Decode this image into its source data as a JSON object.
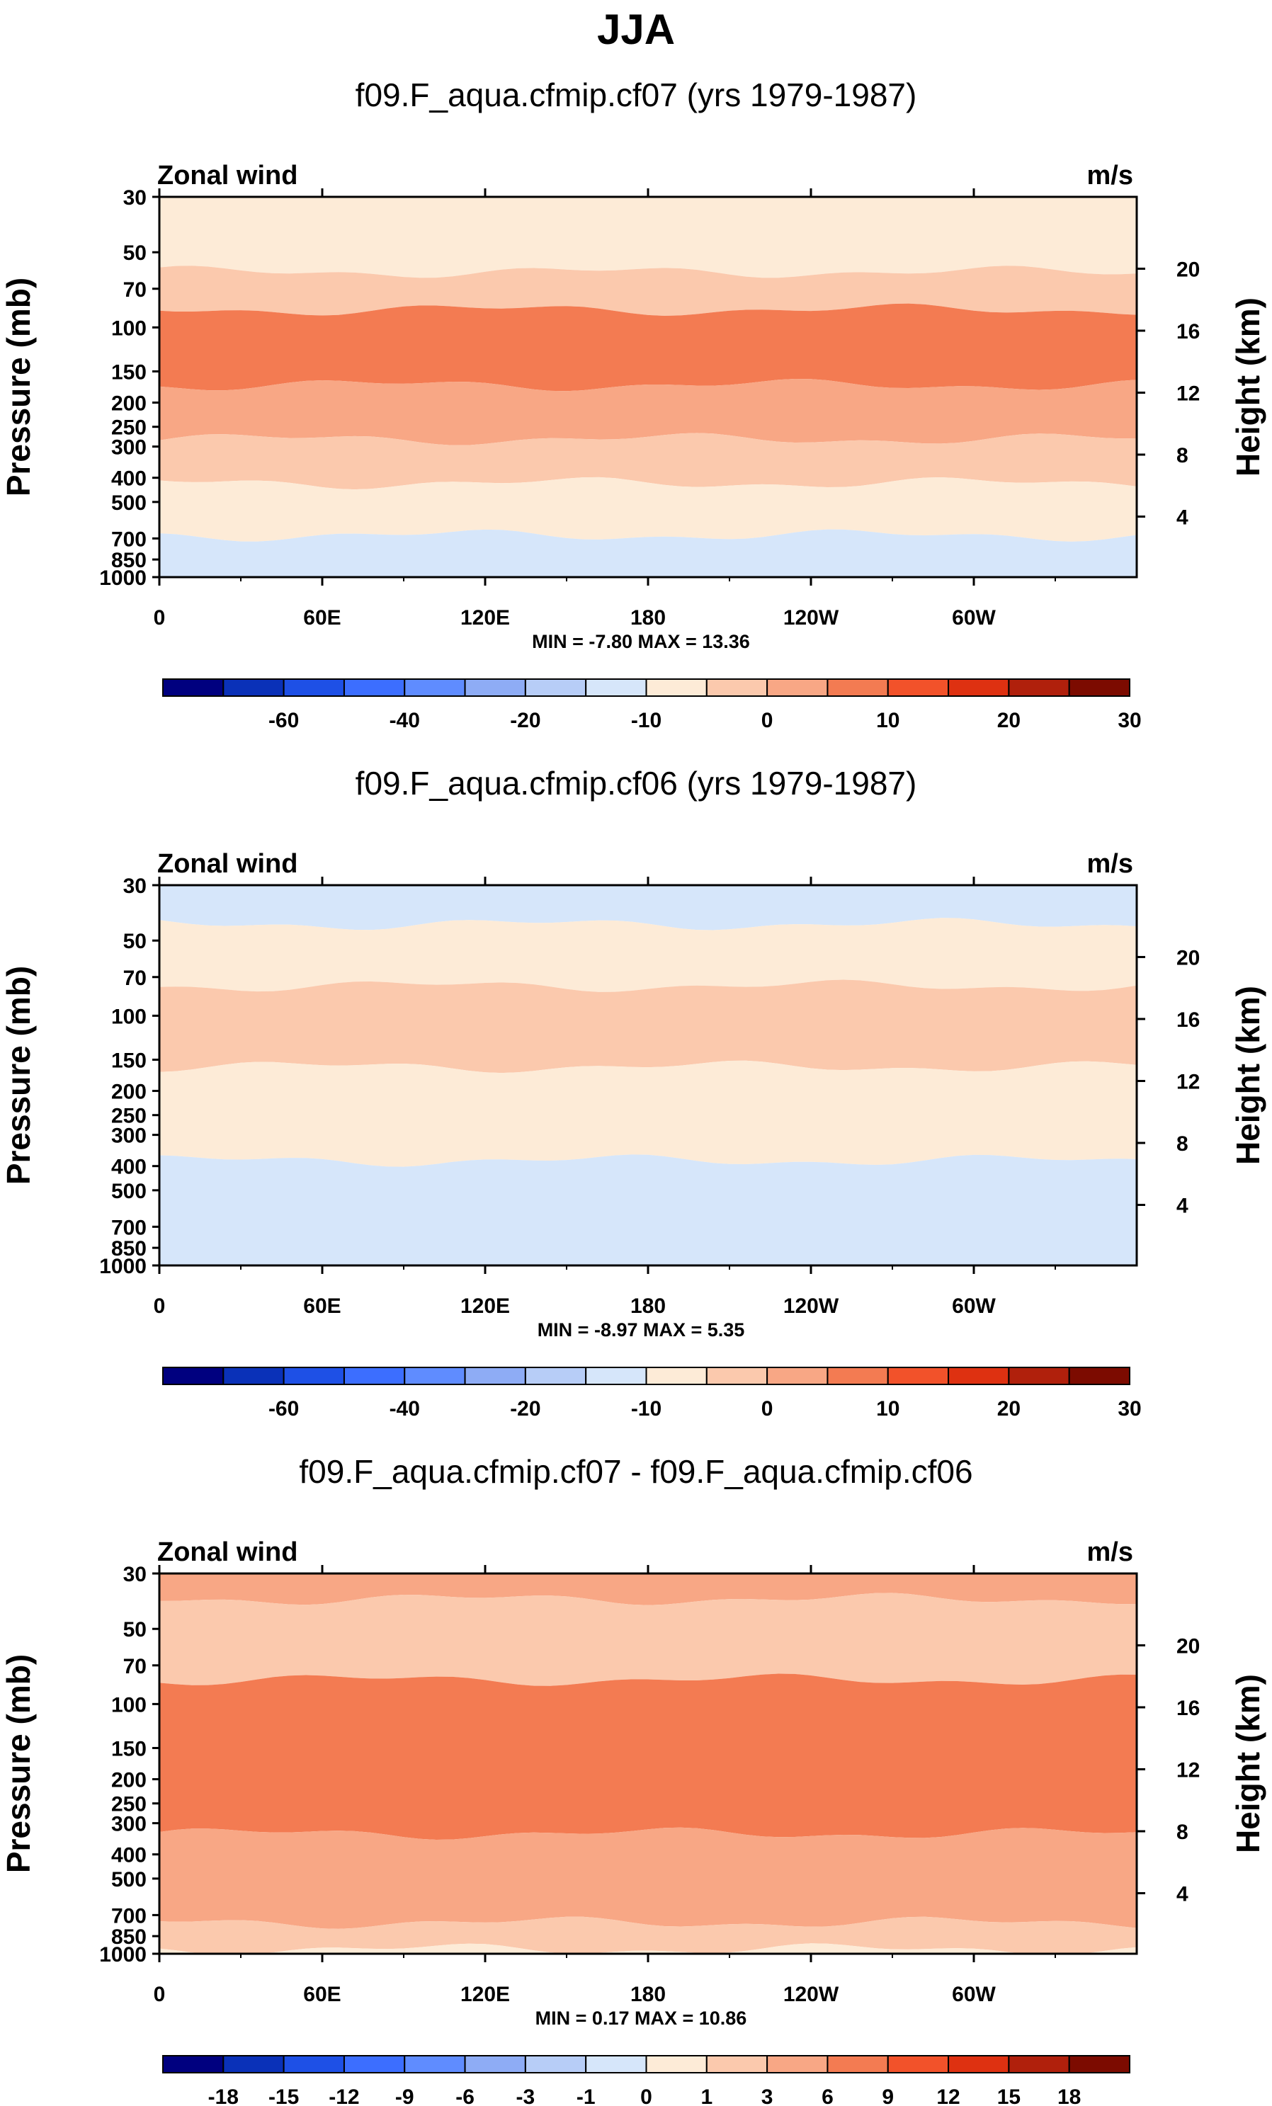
{
  "figure": {
    "title": "JJA"
  },
  "chart_data": [
    {
      "type": "contour",
      "title": "f09.F_aqua.cfmip.cf07 (yrs 1979-1987)",
      "left_label": "Zonal wind",
      "right_label": "m/s",
      "xlabel": "",
      "ylabel": "Pressure (mb)",
      "y2label": "Height (km)",
      "x_ticks": [
        "0",
        "60E",
        "120E",
        "180",
        "120W",
        "60W"
      ],
      "y_ticks": [
        30,
        50,
        70,
        100,
        150,
        200,
        250,
        300,
        400,
        500,
        700,
        850,
        1000
      ],
      "y_scale": "log",
      "ylim": [
        1000,
        30
      ],
      "y2_ticks": [
        4,
        8,
        12,
        16,
        20
      ],
      "stats": "MIN =  -7.80  MAX =  13.36",
      "colorbar": {
        "labels": [
          "-60",
          "-40",
          "-20",
          "-10",
          "0",
          "10",
          "20",
          "30"
        ],
        "colors": [
          "#00007f",
          "#0a31b8",
          "#1e50e6",
          "#3c6eff",
          "#5f8cff",
          "#8eacf5",
          "#b7cdf7",
          "#d6e6fa",
          "#fdebd7",
          "#fbc9ad",
          "#f8a785",
          "#f37b52",
          "#f2522a",
          "#de3111",
          "#b0200c",
          "#7c0b00"
        ]
      },
      "bands": [
        {
          "color": "#fdebd7",
          "from": 30,
          "to": 60
        },
        {
          "color": "#fbc9ad",
          "from": 60,
          "to": 85
        },
        {
          "color": "#f37b52",
          "from": 85,
          "to": 170
        },
        {
          "color": "#f8a785",
          "from": 170,
          "to": 280
        },
        {
          "color": "#fbc9ad",
          "from": 280,
          "to": 420
        },
        {
          "color": "#fdebd7",
          "from": 420,
          "to": 680
        },
        {
          "color": "#d6e6fa",
          "from": 680,
          "to": 1000
        }
      ]
    },
    {
      "type": "contour",
      "title": "f09.F_aqua.cfmip.cf06 (yrs 1979-1987)",
      "left_label": "Zonal wind",
      "right_label": "m/s",
      "xlabel": "",
      "ylabel": "Pressure (mb)",
      "y2label": "Height (km)",
      "x_ticks": [
        "0",
        "60E",
        "120E",
        "180",
        "120W",
        "60W"
      ],
      "y_ticks": [
        30,
        50,
        70,
        100,
        150,
        200,
        250,
        300,
        400,
        500,
        700,
        850,
        1000
      ],
      "y_scale": "log",
      "ylim": [
        1000,
        30
      ],
      "y2_ticks": [
        4,
        8,
        12,
        16,
        20
      ],
      "stats": "MIN =  -8.97  MAX =   5.35",
      "colorbar": {
        "labels": [
          "-60",
          "-40",
          "-20",
          "-10",
          "0",
          "10",
          "20",
          "30"
        ],
        "colors": [
          "#00007f",
          "#0a31b8",
          "#1e50e6",
          "#3c6eff",
          "#5f8cff",
          "#8eacf5",
          "#b7cdf7",
          "#d6e6fa",
          "#fdebd7",
          "#fbc9ad",
          "#f8a785",
          "#f37b52",
          "#f2522a",
          "#de3111",
          "#b0200c",
          "#7c0b00"
        ]
      },
      "bands": [
        {
          "color": "#d6e6fa",
          "from": 30,
          "to": 43
        },
        {
          "color": "#fdebd7",
          "from": 43,
          "to": 76
        },
        {
          "color": "#fbc9ad",
          "from": 76,
          "to": 160
        },
        {
          "color": "#fdebd7",
          "from": 160,
          "to": 380
        },
        {
          "color": "#d6e6fa",
          "from": 380,
          "to": 1000
        }
      ]
    },
    {
      "type": "contour",
      "title": "f09.F_aqua.cfmip.cf07 - f09.F_aqua.cfmip.cf06",
      "left_label": "Zonal wind",
      "right_label": "m/s",
      "xlabel": "",
      "ylabel": "Pressure (mb)",
      "y2label": "Height (km)",
      "x_ticks": [
        "0",
        "60E",
        "120E",
        "180",
        "120W",
        "60W"
      ],
      "y_ticks": [
        30,
        50,
        70,
        100,
        150,
        200,
        250,
        300,
        400,
        500,
        700,
        850,
        1000
      ],
      "y_scale": "log",
      "ylim": [
        1000,
        30
      ],
      "y2_ticks": [
        4,
        8,
        12,
        16,
        20
      ],
      "stats": "MIN =   0.17  MAX =  10.86",
      "colorbar": {
        "labels": [
          "-18",
          "-15",
          "-12",
          "-9",
          "-6",
          "-3",
          "-1",
          "0",
          "1",
          "3",
          "6",
          "9",
          "12",
          "15",
          "18"
        ],
        "colors": [
          "#00007f",
          "#0a31b8",
          "#1e50e6",
          "#3c6eff",
          "#5f8cff",
          "#8eacf5",
          "#b7cdf7",
          "#d6e6fa",
          "#fdebd7",
          "#fbc9ad",
          "#f8a785",
          "#f37b52",
          "#f2522a",
          "#de3111",
          "#b0200c",
          "#7c0b00"
        ]
      },
      "bands": [
        {
          "color": "#f8a785",
          "from": 30,
          "to": 38
        },
        {
          "color": "#fbc9ad",
          "from": 38,
          "to": 80
        },
        {
          "color": "#f37b52",
          "from": 80,
          "to": 330
        },
        {
          "color": "#f8a785",
          "from": 330,
          "to": 750
        },
        {
          "color": "#fbc9ad",
          "from": 750,
          "to": 960
        },
        {
          "color": "#fdebd7",
          "from": 960,
          "to": 1000
        }
      ]
    }
  ]
}
